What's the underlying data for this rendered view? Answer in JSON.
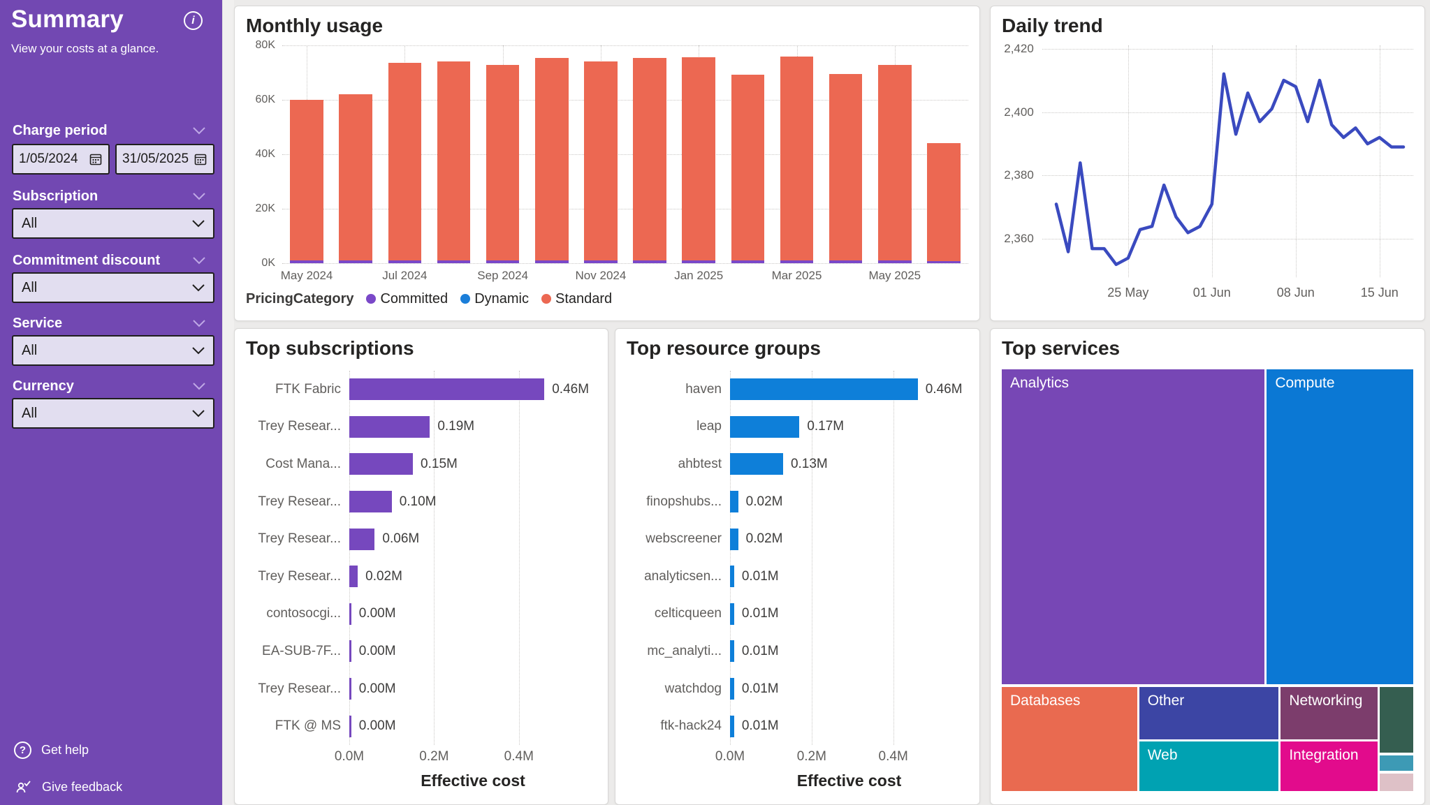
{
  "sidebar": {
    "title": "Summary",
    "subtitle": "View your costs at a glance.",
    "accent_color": "#7248B2",
    "charge_period": {
      "label": "Charge period",
      "from": "1/05/2024",
      "to": "31/05/2025"
    },
    "filters": [
      {
        "label": "Subscription",
        "value": "All"
      },
      {
        "label": "Commitment discount",
        "value": "All"
      },
      {
        "label": "Service",
        "value": "All"
      },
      {
        "label": "Currency",
        "value": "All"
      }
    ],
    "footer": {
      "get_help": "Get help",
      "give_feedback": "Give feedback"
    }
  },
  "chart_data": [
    {
      "id": "monthly-usage",
      "type": "bar",
      "title": "Monthly usage",
      "categories": [
        "May 2024",
        "Jun 2024",
        "Jul 2024",
        "Aug 2024",
        "Sep 2024",
        "Oct 2024",
        "Nov 2024",
        "Dec 2024",
        "Jan 2025",
        "Feb 2025",
        "Mar 2025",
        "Apr 2025",
        "May 2025",
        "Jun 2025"
      ],
      "x_tick_labels": [
        "May 2024",
        "Jul 2024",
        "Sep 2024",
        "Nov 2024",
        "Jan 2025",
        "Mar 2025",
        "May 2025"
      ],
      "totals": [
        60,
        62,
        73.6,
        74.2,
        72.7,
        75.4,
        74,
        75.5,
        75.6,
        69.3,
        76,
        69.5,
        72.7,
        44
      ],
      "series": [
        {
          "name": "Committed",
          "color": "#7A48C8",
          "values": [
            1,
            1,
            1,
            1,
            1,
            1,
            1,
            1,
            1,
            1,
            1,
            1,
            1,
            0.8
          ]
        },
        {
          "name": "Dynamic",
          "color": "#1B7ED9",
          "values": [
            0,
            0,
            0,
            0,
            0,
            0,
            0,
            0,
            0,
            0,
            0,
            0,
            0,
            0
          ]
        },
        {
          "name": "Standard",
          "color": "#EC6852",
          "values": [
            59,
            61,
            72.6,
            73.2,
            71.7,
            74.4,
            73,
            74.5,
            74.6,
            68.3,
            75,
            68.5,
            71.7,
            43.2
          ]
        }
      ],
      "ylim": [
        0,
        80
      ],
      "y_ticks": [
        "80K",
        "60K",
        "40K",
        "20K",
        "0K"
      ],
      "legend_title": "PricingCategory",
      "legend": [
        {
          "label": "Committed",
          "color": "#7A48C8"
        },
        {
          "label": "Dynamic",
          "color": "#1B7ED9"
        },
        {
          "label": "Standard",
          "color": "#EC6852"
        }
      ]
    },
    {
      "id": "daily-trend",
      "type": "line",
      "title": "Daily trend",
      "line_color": "#3A4ABF",
      "ylim": [
        2348,
        2421
      ],
      "y_ticks": [
        {
          "label": "2,420",
          "value": 2420
        },
        {
          "label": "2,400",
          "value": 2400
        },
        {
          "label": "2,380",
          "value": 2380
        },
        {
          "label": "2,360",
          "value": 2360
        }
      ],
      "x_ticks": [
        {
          "label": "25 May",
          "index": 6
        },
        {
          "label": "01 Jun",
          "index": 13
        },
        {
          "label": "08 Jun",
          "index": 20
        },
        {
          "label": "15 Jun",
          "index": 27
        }
      ],
      "values": [
        2371,
        2356,
        2384,
        2357,
        2357,
        2352,
        2354,
        2363,
        2364,
        2377,
        2367,
        2362,
        2364,
        2371,
        2412,
        2393,
        2406,
        2397,
        2401,
        2410,
        2408,
        2397,
        2410,
        2396,
        2392,
        2395,
        2390,
        2392,
        2389,
        2389
      ]
    },
    {
      "id": "top-subscriptions",
      "type": "bar-horizontal",
      "title": "Top subscriptions",
      "bar_color": "#7648BE",
      "axis_max": 0.57,
      "categories": [
        "FTK Fabric",
        "Trey Resear...",
        "Cost Mana...",
        "Trey Resear...",
        "Trey Resear...",
        "Trey Resear...",
        "contosocgi...",
        "EA-SUB-7F...",
        "Trey Resear...",
        "FTK @ MS"
      ],
      "values": [
        0.46,
        0.19,
        0.15,
        0.1,
        0.06,
        0.02,
        0.004,
        0.004,
        0.003,
        0.003
      ],
      "value_labels": [
        "0.46M",
        "0.19M",
        "0.15M",
        "0.10M",
        "0.06M",
        "0.02M",
        "0.00M",
        "0.00M",
        "0.00M",
        "0.00M"
      ],
      "x_ticks": [
        {
          "label": "0.0M",
          "value": 0
        },
        {
          "label": "0.2M",
          "value": 0.2
        },
        {
          "label": "0.4M",
          "value": 0.4
        }
      ],
      "xlabel": "Effective cost"
    },
    {
      "id": "top-resource-groups",
      "type": "bar-horizontal",
      "title": "Top resource groups",
      "bar_color": "#0E7FD9",
      "axis_max": 0.57,
      "categories": [
        "haven",
        "leap",
        "ahbtest",
        "finopshubs...",
        "webscreener",
        "analyticsen...",
        "celticqueen",
        "mc_analyti...",
        "watchdog",
        "ftk-hack24"
      ],
      "values": [
        0.46,
        0.17,
        0.13,
        0.02,
        0.02,
        0.01,
        0.01,
        0.01,
        0.01,
        0.01
      ],
      "value_labels": [
        "0.46M",
        "0.17M",
        "0.13M",
        "0.02M",
        "0.02M",
        "0.01M",
        "0.01M",
        "0.01M",
        "0.01M",
        "0.01M"
      ],
      "x_ticks": [
        {
          "label": "0.0M",
          "value": 0
        },
        {
          "label": "0.2M",
          "value": 0.2
        },
        {
          "label": "0.4M",
          "value": 0.4
        }
      ],
      "xlabel": "Effective cost"
    },
    {
      "id": "top-services",
      "type": "treemap",
      "title": "Top services",
      "tiles": [
        {
          "label": "Analytics",
          "color": "#7747B5"
        },
        {
          "label": "Compute",
          "color": "#0B78D4"
        },
        {
          "label": "Databases",
          "color": "#E96A50"
        },
        {
          "label": "Other",
          "color": "#3C45A4"
        },
        {
          "label": "Web",
          "color": "#00A2B2"
        },
        {
          "label": "Networking",
          "color": "#7C3D6C"
        },
        {
          "label": "Integration",
          "color": "#E20B8C"
        },
        {
          "label": "",
          "color": "#355E50"
        },
        {
          "label": "",
          "color": "#3D9AB5"
        },
        {
          "label": "",
          "color": "#DEC1C7"
        }
      ]
    }
  ]
}
